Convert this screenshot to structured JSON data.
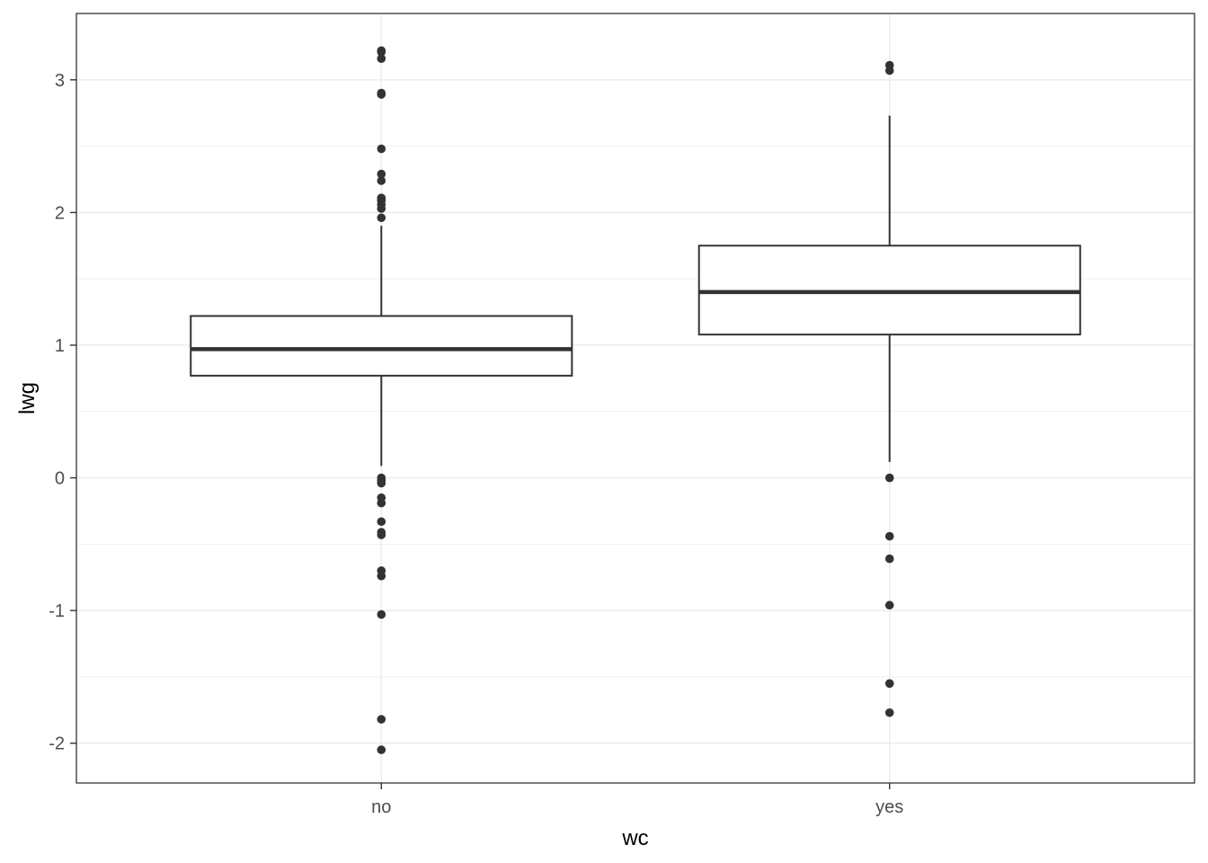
{
  "chart_data": {
    "type": "box",
    "xlabel": "wc",
    "ylabel": "lwg",
    "ylim": [
      -2.3,
      3.5
    ],
    "yticks": [
      -2,
      -1,
      0,
      1,
      2,
      3
    ],
    "grid": true,
    "categories": [
      "no",
      "yes"
    ],
    "boxes": [
      {
        "category": "no",
        "whisker_low": 0.09,
        "q1": 0.77,
        "median": 0.97,
        "q3": 1.22,
        "whisker_high": 1.9,
        "outliers": [
          3.22,
          3.21,
          3.16,
          2.9,
          2.89,
          2.48,
          2.29,
          2.24,
          2.11,
          2.09,
          2.06,
          2.03,
          1.96,
          0.0,
          -0.02,
          -0.04,
          -0.15,
          -0.19,
          -0.33,
          -0.41,
          -0.43,
          -0.7,
          -0.74,
          -1.03,
          -1.82,
          -2.05
        ]
      },
      {
        "category": "yes",
        "whisker_low": 0.12,
        "q1": 1.08,
        "median": 1.4,
        "q3": 1.75,
        "whisker_high": 2.73,
        "outliers": [
          3.11,
          3.07,
          0.0,
          -0.44,
          -0.61,
          -0.96,
          -1.55,
          -1.77
        ]
      }
    ]
  }
}
